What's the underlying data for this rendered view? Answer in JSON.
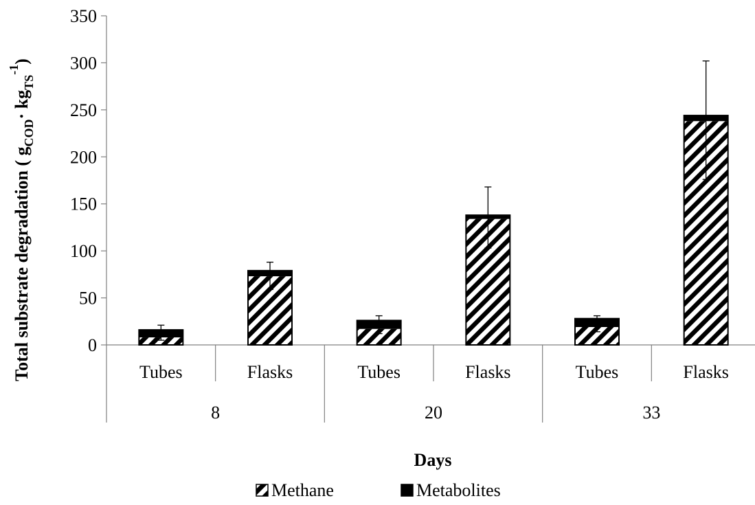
{
  "chart_data": {
    "type": "bar",
    "stacked": true,
    "ylabel": {
      "prefix": "Total substrate degradation ( g",
      "sub1": "COD",
      "mid": "· kg",
      "sub2": "TS",
      "sup": "-1",
      "suffix": ")"
    },
    "xlabel": "Days",
    "ylim": [
      0,
      350
    ],
    "yticks": [
      0,
      50,
      100,
      150,
      200,
      250,
      300,
      350
    ],
    "grid": false,
    "legend_position": "bottom",
    "groups": [
      {
        "label": "8",
        "categories": [
          "Tubes",
          "Flasks"
        ]
      },
      {
        "label": "20",
        "categories": [
          "Tubes",
          "Flasks"
        ]
      },
      {
        "label": "33",
        "categories": [
          "Tubes",
          "Flasks"
        ]
      }
    ],
    "categories": [
      "Tubes",
      "Flasks",
      "Tubes",
      "Flasks",
      "Tubes",
      "Flasks"
    ],
    "series": [
      {
        "name": "Methane",
        "pattern": "diagonal-hatch",
        "color": "#000000",
        "values": [
          8,
          73,
          17,
          134,
          19,
          238
        ]
      },
      {
        "name": "Metabolites",
        "pattern": "solid",
        "color": "#000000",
        "values": [
          8,
          6,
          9,
          4,
          9,
          6
        ]
      }
    ],
    "error_bars": {
      "top": [
        21,
        88,
        31,
        168,
        31,
        302
      ],
      "bottom": [
        5,
        59,
        12,
        103,
        14,
        176
      ]
    }
  }
}
